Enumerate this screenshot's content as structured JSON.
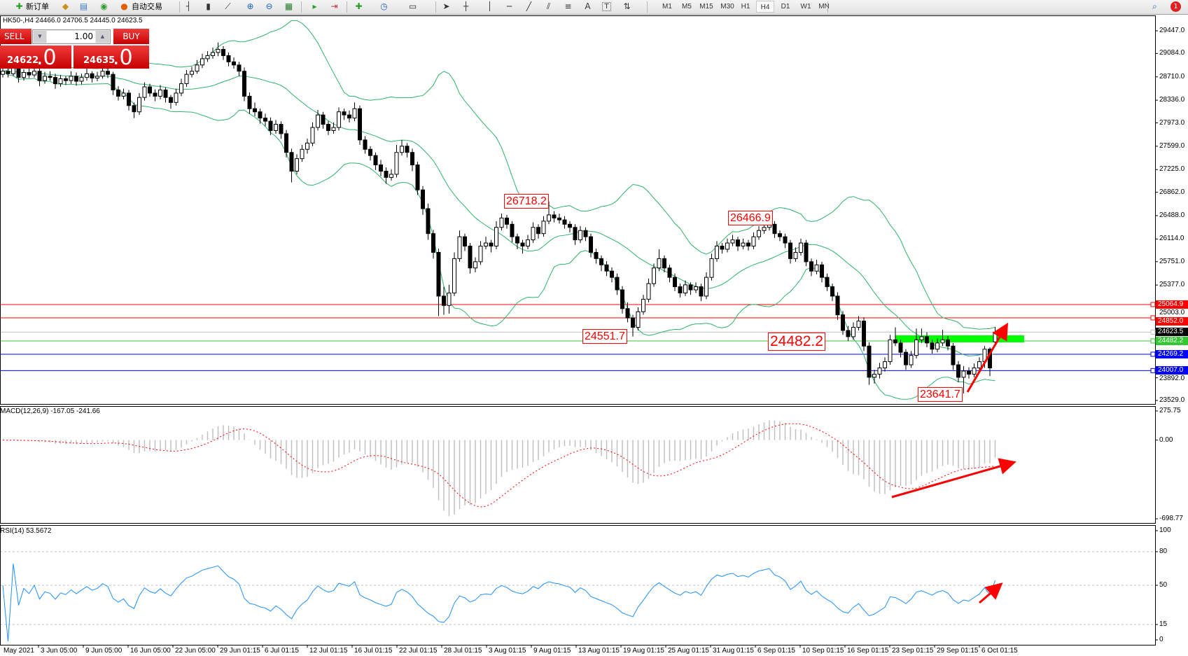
{
  "toolbar": {
    "new_order": "新订单",
    "auto_trading": "自动交易",
    "text_tool": "A",
    "text_label_tool": "T",
    "timeframes": [
      "M1",
      "M5",
      "M15",
      "M30",
      "H1",
      "H4",
      "D1",
      "W1",
      "MN"
    ],
    "active_timeframe": "H4",
    "notification_count": "1"
  },
  "chart": {
    "header": "HK50-,H4  24466.0 24706.5 24445.0 24623.5",
    "symbol": "HK50-",
    "timeframe": "H4",
    "ohlc": {
      "open": 24466.0,
      "high": 24706.5,
      "low": 24445.0,
      "close": 24623.5
    },
    "price_axis": [
      "29447.0",
      "29084.0",
      "28710.0",
      "28336.0",
      "27973.0",
      "27599.0",
      "27225.0",
      "26862.0",
      "26488.0",
      "26114.0",
      "25751.0",
      "25377.0",
      "25003.0",
      "23892.0",
      "23529.0"
    ],
    "price_range": [
      23529.0,
      29447.0
    ],
    "bollinger": {
      "period": 20,
      "deviation": 2,
      "color": "#2fb36a"
    },
    "candles": [
      [
        28750,
        28870,
        28700,
        28800
      ],
      [
        28800,
        28850,
        28700,
        28760
      ],
      [
        28760,
        28930,
        28720,
        28850
      ],
      [
        28850,
        28900,
        28620,
        28700
      ],
      [
        28700,
        28830,
        28650,
        28780
      ],
      [
        28780,
        28860,
        28690,
        28740
      ],
      [
        28740,
        28880,
        28700,
        28800
      ],
      [
        28800,
        28840,
        28560,
        28650
      ],
      [
        28650,
        28790,
        28600,
        28720
      ],
      [
        28720,
        28800,
        28650,
        28700
      ],
      [
        28700,
        28760,
        28520,
        28600
      ],
      [
        28600,
        28740,
        28550,
        28680
      ],
      [
        28680,
        28720,
        28580,
        28650
      ],
      [
        28650,
        28800,
        28600,
        28720
      ],
      [
        28720,
        28780,
        28570,
        28640
      ],
      [
        28640,
        28760,
        28590,
        28700
      ],
      [
        28700,
        28850,
        28650,
        28760
      ],
      [
        28760,
        28800,
        28620,
        28690
      ],
      [
        28690,
        28790,
        28640,
        28720
      ],
      [
        28720,
        28880,
        28680,
        28800
      ],
      [
        28800,
        28850,
        28690,
        28750
      ],
      [
        28750,
        28790,
        28420,
        28500
      ],
      [
        28500,
        28560,
        28330,
        28400
      ],
      [
        28400,
        28520,
        28350,
        28450
      ],
      [
        28450,
        28500,
        28170,
        28250
      ],
      [
        28250,
        28300,
        28050,
        28150
      ],
      [
        28150,
        28450,
        28100,
        28380
      ],
      [
        28380,
        28620,
        28330,
        28550
      ],
      [
        28550,
        28600,
        28390,
        28450
      ],
      [
        28450,
        28510,
        28320,
        28400
      ],
      [
        28400,
        28580,
        28350,
        28500
      ],
      [
        28500,
        28540,
        28300,
        28380
      ],
      [
        28380,
        28420,
        28200,
        28300
      ],
      [
        28300,
        28520,
        28250,
        28450
      ],
      [
        28450,
        28680,
        28400,
        28600
      ],
      [
        28600,
        28820,
        28550,
        28750
      ],
      [
        28750,
        28870,
        28700,
        28800
      ],
      [
        28800,
        28980,
        28760,
        28900
      ],
      [
        28900,
        29080,
        28850,
        29000
      ],
      [
        29000,
        29120,
        28950,
        29050
      ],
      [
        29050,
        29180,
        29000,
        29100
      ],
      [
        29100,
        29260,
        29040,
        29150
      ],
      [
        29150,
        29200,
        28980,
        29050
      ],
      [
        29050,
        29100,
        28880,
        28950
      ],
      [
        28950,
        29020,
        28840,
        28900
      ],
      [
        28900,
        28950,
        28720,
        28800
      ],
      [
        28800,
        28860,
        28320,
        28400
      ],
      [
        28400,
        28460,
        28120,
        28200
      ],
      [
        28200,
        28300,
        28080,
        28150
      ],
      [
        28150,
        28200,
        27960,
        28050
      ],
      [
        28050,
        28120,
        27920,
        28000
      ],
      [
        28000,
        28060,
        27780,
        27850
      ],
      [
        27850,
        28020,
        27800,
        27950
      ],
      [
        27950,
        28000,
        27720,
        27800
      ],
      [
        27800,
        27860,
        27420,
        27500
      ],
      [
        27500,
        27560,
        27020,
        27200
      ],
      [
        27200,
        27470,
        27150,
        27400
      ],
      [
        27400,
        27620,
        27350,
        27550
      ],
      [
        27550,
        27720,
        27480,
        27650
      ],
      [
        27650,
        27980,
        27600,
        27900
      ],
      [
        27900,
        28180,
        27850,
        28100
      ],
      [
        28100,
        28150,
        27880,
        27950
      ],
      [
        27950,
        28000,
        27780,
        27850
      ],
      [
        27850,
        27980,
        27800,
        27900
      ],
      [
        27900,
        28220,
        27850,
        28150
      ],
      [
        28150,
        28200,
        28020,
        28100
      ],
      [
        28100,
        28170,
        27980,
        28050
      ],
      [
        28050,
        28300,
        28000,
        28200
      ],
      [
        28200,
        28250,
        27620,
        27700
      ],
      [
        27700,
        27760,
        27480,
        27550
      ],
      [
        27550,
        27600,
        27370,
        27450
      ],
      [
        27450,
        27500,
        27220,
        27300
      ],
      [
        27300,
        27380,
        27120,
        27200
      ],
      [
        27200,
        27260,
        27000,
        27100
      ],
      [
        27100,
        27230,
        27050,
        27150
      ],
      [
        27150,
        27620,
        27100,
        27500
      ],
      [
        27500,
        27700,
        27450,
        27600
      ],
      [
        27600,
        27650,
        27420,
        27500
      ],
      [
        27500,
        27560,
        27200,
        27300
      ],
      [
        27300,
        27350,
        26820,
        26900
      ],
      [
        26900,
        26960,
        26500,
        26600
      ],
      [
        26600,
        26680,
        26100,
        26200
      ],
      [
        26200,
        26260,
        25800,
        25900
      ],
      [
        25900,
        25960,
        24880,
        25200
      ],
      [
        25200,
        25350,
        24900,
        25050
      ],
      [
        25050,
        25380,
        24920,
        25250
      ],
      [
        25250,
        25900,
        25200,
        25800
      ],
      [
        25800,
        26250,
        25750,
        26150
      ],
      [
        26150,
        26200,
        25920,
        26000
      ],
      [
        26000,
        26050,
        25560,
        25650
      ],
      [
        25650,
        25820,
        25580,
        25750
      ],
      [
        25750,
        26080,
        25700,
        26000
      ],
      [
        26000,
        26150,
        25950,
        26050
      ],
      [
        26050,
        26100,
        25900,
        26000
      ],
      [
        26000,
        26400,
        25950,
        26300
      ],
      [
        26300,
        26520,
        26250,
        26450
      ],
      [
        26450,
        26500,
        26280,
        26350
      ],
      [
        26350,
        26400,
        26060,
        26150
      ],
      [
        26150,
        26200,
        25950,
        26050
      ],
      [
        26050,
        26100,
        25880,
        26000
      ],
      [
        26000,
        26180,
        25950,
        26100
      ],
      [
        26100,
        26380,
        26050,
        26300
      ],
      [
        26300,
        26350,
        26120,
        26200
      ],
      [
        26200,
        26480,
        26150,
        26400
      ],
      [
        26400,
        26718.2,
        26350,
        26500
      ],
      [
        26500,
        26560,
        26380,
        26450
      ],
      [
        26450,
        26520,
        26360,
        26420
      ],
      [
        26420,
        26480,
        26280,
        26350
      ],
      [
        26350,
        26400,
        26220,
        26300
      ],
      [
        26300,
        26350,
        26020,
        26100
      ],
      [
        26100,
        26320,
        26050,
        26250
      ],
      [
        26250,
        26300,
        26080,
        26150
      ],
      [
        26150,
        26200,
        25820,
        25900
      ],
      [
        25900,
        25960,
        25720,
        25800
      ],
      [
        25800,
        25850,
        25600,
        25700
      ],
      [
        25700,
        25760,
        25520,
        25600
      ],
      [
        25600,
        25660,
        25420,
        25500
      ],
      [
        25500,
        25560,
        25220,
        25300
      ],
      [
        25300,
        25360,
        24920,
        25000
      ],
      [
        25000,
        25100,
        24780,
        24850
      ],
      [
        24850,
        24900,
        24551.7,
        24700
      ],
      [
        24700,
        25020,
        24650,
        24950
      ],
      [
        24950,
        25220,
        24900,
        25150
      ],
      [
        25150,
        25480,
        25100,
        25400
      ],
      [
        25400,
        25720,
        25350,
        25650
      ],
      [
        25650,
        25950,
        25600,
        25800
      ],
      [
        25800,
        25850,
        25580,
        25650
      ],
      [
        25650,
        25700,
        25420,
        25500
      ],
      [
        25500,
        25560,
        25280,
        25350
      ],
      [
        25350,
        25400,
        25180,
        25250
      ],
      [
        25250,
        25450,
        25200,
        25380
      ],
      [
        25380,
        25420,
        25220,
        25300
      ],
      [
        25300,
        25420,
        25250,
        25350
      ],
      [
        25350,
        25400,
        25120,
        25200
      ],
      [
        25200,
        25580,
        25150,
        25500
      ],
      [
        25500,
        25880,
        25450,
        25800
      ],
      [
        25800,
        26080,
        25750,
        26000
      ],
      [
        26000,
        26050,
        25880,
        25950
      ],
      [
        25950,
        26120,
        25900,
        26050
      ],
      [
        26050,
        26180,
        26000,
        26100
      ],
      [
        26100,
        26150,
        25920,
        26000
      ],
      [
        26000,
        26120,
        25950,
        26050
      ],
      [
        26050,
        26100,
        25930,
        26000
      ],
      [
        26000,
        26220,
        25950,
        26150
      ],
      [
        26150,
        26320,
        26100,
        26250
      ],
      [
        26250,
        26380,
        26200,
        26300
      ],
      [
        26300,
        26466.9,
        26250,
        26350
      ],
      [
        26350,
        26400,
        26130,
        26200
      ],
      [
        26200,
        26250,
        26080,
        26150
      ],
      [
        26150,
        26200,
        25970,
        26050
      ],
      [
        26050,
        26100,
        25720,
        25800
      ],
      [
        25800,
        25980,
        25750,
        25900
      ],
      [
        25900,
        26120,
        25850,
        26050
      ],
      [
        26050,
        26100,
        25680,
        25750
      ],
      [
        25750,
        25800,
        25520,
        25600
      ],
      [
        25600,
        25780,
        25550,
        25700
      ],
      [
        25700,
        25750,
        25420,
        25500
      ],
      [
        25500,
        25560,
        25280,
        25350
      ],
      [
        25350,
        25400,
        25120,
        25200
      ],
      [
        25200,
        25260,
        24820,
        24900
      ],
      [
        24900,
        24960,
        24580,
        24650
      ],
      [
        24650,
        24720,
        24480,
        24550
      ],
      [
        24550,
        24780,
        24500,
        24700
      ],
      [
        24700,
        24880,
        24650,
        24800
      ],
      [
        24800,
        24860,
        24320,
        24400
      ],
      [
        24400,
        24460,
        23780,
        23900
      ],
      [
        23900,
        24020,
        23800,
        23950
      ],
      [
        23950,
        24130,
        23880,
        24050
      ],
      [
        24050,
        24220,
        23990,
        24150
      ],
      [
        24150,
        24580,
        24100,
        24500
      ],
      [
        24500,
        24700,
        24400,
        24450
      ],
      [
        24450,
        24500,
        24220,
        24300
      ],
      [
        24300,
        24350,
        24020,
        24100
      ],
      [
        24100,
        24320,
        24050,
        24250
      ],
      [
        24250,
        24680,
        24200,
        24500
      ],
      [
        24500,
        24680,
        24450,
        24550
      ],
      [
        24550,
        24620,
        24380,
        24450
      ],
      [
        24450,
        24500,
        24280,
        24350
      ],
      [
        24350,
        24520,
        24300,
        24450
      ],
      [
        24450,
        24660,
        24400,
        24500
      ],
      [
        24500,
        24560,
        24330,
        24400
      ],
      [
        24400,
        24450,
        24020,
        24100
      ],
      [
        24100,
        24160,
        23820,
        23900
      ],
      [
        23900,
        24080,
        23641.7,
        24000
      ],
      [
        24000,
        24060,
        23880,
        23950
      ],
      [
        23950,
        24120,
        23900,
        24050
      ],
      [
        24050,
        24220,
        24000,
        24150
      ],
      [
        24150,
        24400,
        24050,
        24350
      ],
      [
        24350,
        24380,
        23920,
        24050
      ],
      [
        24466,
        24706.5,
        24445,
        24623.5
      ]
    ],
    "levels": [
      {
        "price": "25064.9",
        "color": "#ff0000",
        "label_color": "#ff0000"
      },
      {
        "price": "24852.0",
        "color": "#ff0000",
        "label_color": "#ff0000"
      },
      {
        "price": "24623.5",
        "color": "#c0c0c0",
        "label_color": "#000000"
      },
      {
        "price": "24482.2",
        "color": "#32c832",
        "label_color": "#32c832"
      },
      {
        "price": "24269.2",
        "color": "#0000ff",
        "label_color": "#0000ff"
      },
      {
        "price": "24007.0",
        "color": "#0000ff",
        "label_color": "#0000ff"
      }
    ],
    "annotations": {
      "high_1": "26718.2",
      "high_2": "26466.9",
      "low_1": "24551.7",
      "level_label": "24482.2",
      "low_2": "23641.7"
    },
    "zone_color": "#00ff00",
    "arrow_color": "#ff0000"
  },
  "trade_panel": {
    "sell_label": "SELL",
    "buy_label": "BUY",
    "lot_size": "1.00",
    "sell_price_main": "24622",
    "sell_price_frac": ".0",
    "buy_price_main": "24635",
    "buy_price_frac": ".0"
  },
  "macd": {
    "header": "MACD(12,26,9) -167.05 -241.66",
    "params": [
      12,
      26,
      9
    ],
    "value": -167.05,
    "signal": -241.66,
    "axis": [
      "275.75",
      "0.00",
      "-698.77"
    ],
    "range": [
      -698.77,
      275.75
    ],
    "histogram_color": "#c0c0c0",
    "signal_color": "#ff0000"
  },
  "rsi": {
    "header": "RSI(14) 53.5672",
    "period": 14,
    "value": 53.5672,
    "axis": [
      "100",
      "80",
      "50",
      "15",
      "0"
    ],
    "levels": [
      80,
      50,
      15
    ],
    "color": "#1e90ff"
  },
  "time_axis": [
    "May 2021",
    "3 Jun 05:00",
    "9 Jun 05:00",
    "16 Jun 05:00",
    "22 Jun 05:00",
    "29 Jun 01:15",
    "6 Jul 01:15",
    "12 Jul 01:15",
    "16 Jul 01:15",
    "22 Jul 01:15",
    "28 Jul 01:15",
    "3 Aug 01:15",
    "9 Aug 01:15",
    "13 Aug 01:15",
    "19 Aug 01:15",
    "25 Aug 01:15",
    "31 Aug 01:15",
    "6 Sep 01:15",
    "10 Sep 01:15",
    "16 Sep 01:15",
    "23 Sep 01:15",
    "29 Sep 01:15",
    "6 Oct 01:15"
  ]
}
